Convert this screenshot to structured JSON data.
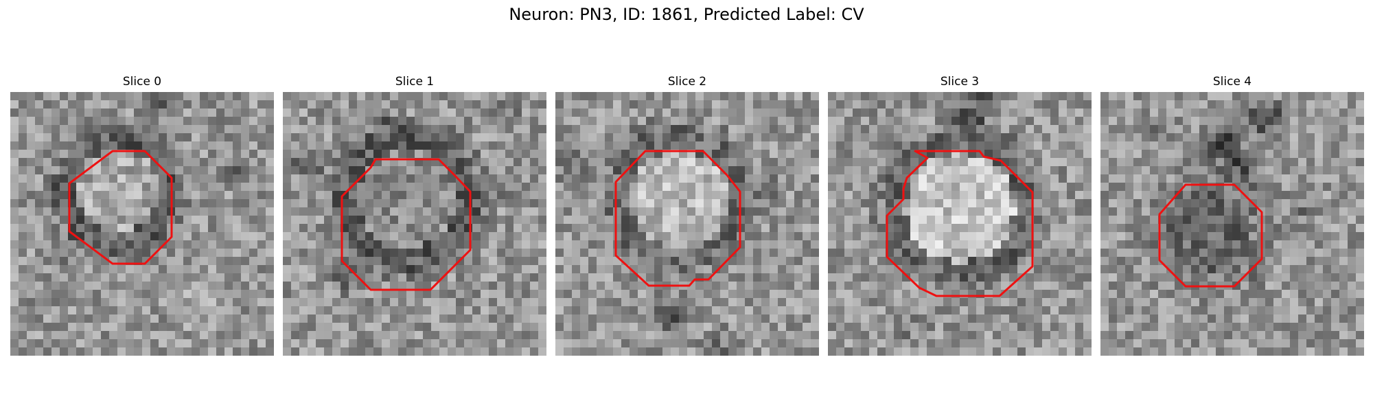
{
  "figure": {
    "title": "Neuron: PN3, ID: 1861, Predicted Label: CV"
  },
  "colors": {
    "contour": "#ee1111",
    "cmap": "gray"
  },
  "slices": [
    {
      "title": "Slice 0"
    },
    {
      "title": "Slice 1"
    },
    {
      "title": "Slice 2"
    },
    {
      "title": "Slice 3"
    },
    {
      "title": "Slice 4"
    }
  ]
}
